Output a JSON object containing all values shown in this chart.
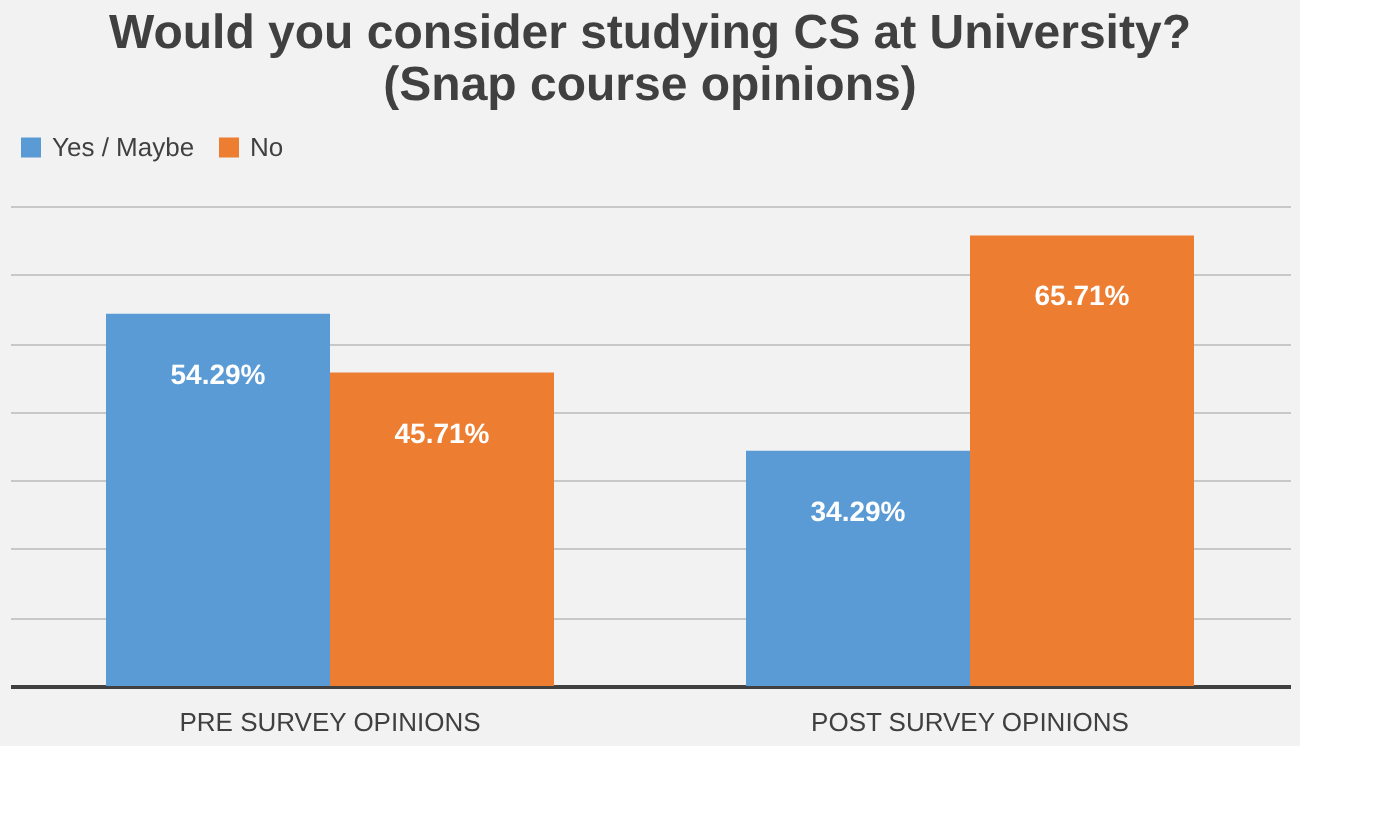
{
  "chart_data": {
    "type": "bar",
    "title": "Would you consider studying CS at University? (Snap course opinions)",
    "categories": [
      "PRE SURVEY OPINIONS",
      "POST SURVEY OPINIONS"
    ],
    "series": [
      {
        "name": "Yes / Maybe",
        "color": "#5b9bd5",
        "values": [
          54.29,
          34.29
        ],
        "value_labels": [
          "54.29%",
          "34.29%"
        ]
      },
      {
        "name": "No",
        "color": "#ed7d31",
        "values": [
          45.71,
          65.71
        ],
        "value_labels": [
          "45.71%",
          "65.71%"
        ]
      }
    ],
    "ylim": [
      0,
      70
    ],
    "yticks": [
      {
        "value": 0,
        "label": null
      },
      {
        "value": 10,
        "label": null
      },
      {
        "value": 20,
        "label": null
      },
      {
        "value": 30,
        "label": null
      },
      {
        "value": 40,
        "label": null
      },
      {
        "value": 50,
        "label": null
      },
      {
        "value": 60,
        "label": null
      },
      {
        "value": 70,
        "label": null
      }
    ],
    "grid": "y",
    "legend": "top",
    "tick_labels": "x"
  }
}
